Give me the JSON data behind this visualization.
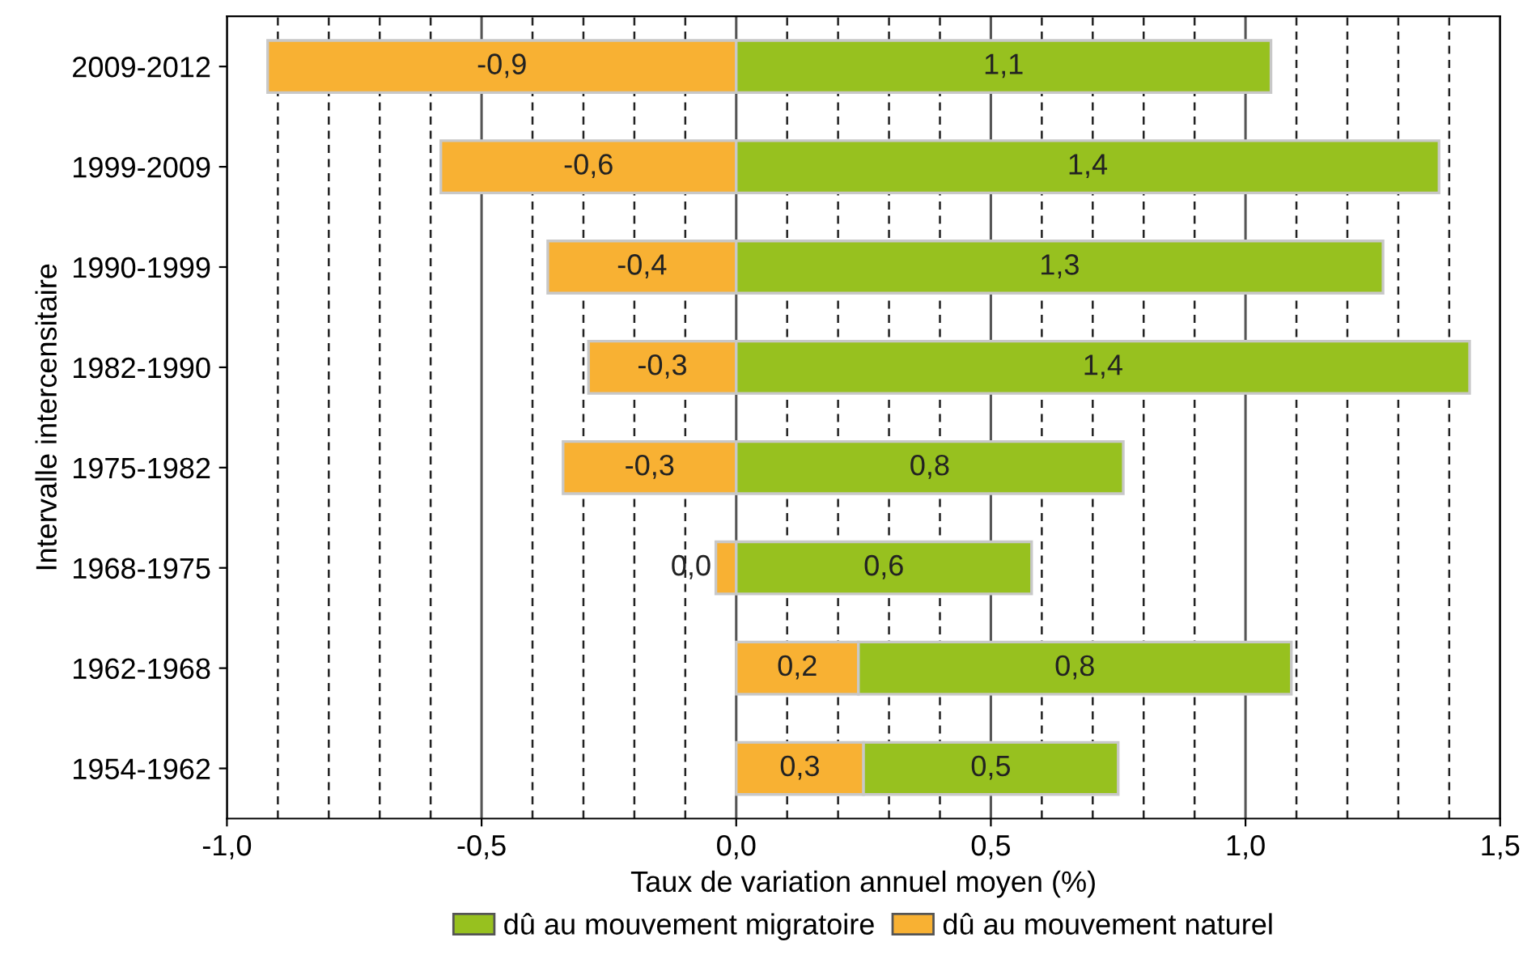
{
  "chart_data": {
    "type": "bar",
    "orientation": "horizontal",
    "stacked": true,
    "xlabel": "Taux de variation annuel moyen (%)",
    "ylabel": "Intervalle intercensitaire",
    "categories": [
      "2009-2012",
      "1999-2009",
      "1990-1999",
      "1982-1990",
      "1975-1982",
      "1968-1975",
      "1962-1968",
      "1954-1962"
    ],
    "series": [
      {
        "name": "dû au mouvement naturel",
        "color": "#f8b133",
        "values": [
          -0.92,
          -0.58,
          -0.37,
          -0.29,
          -0.34,
          -0.04,
          0.24,
          0.25
        ],
        "value_labels": [
          "-0,9",
          "-0,6",
          "-0,4",
          "-0,3",
          "-0,3",
          "0,0",
          "0,2",
          "0,3"
        ]
      },
      {
        "name": "dû au mouvement migratoire",
        "color": "#97c11f",
        "values": [
          1.05,
          1.38,
          1.27,
          1.44,
          0.76,
          0.58,
          0.85,
          0.5
        ],
        "value_labels": [
          "1,1",
          "1,4",
          "1,3",
          "1,4",
          "0,8",
          "0,6",
          "0,8",
          "0,5"
        ]
      }
    ],
    "xlim": [
      -1.0,
      1.5
    ],
    "xticks": [
      {
        "value": -1.0,
        "label": "-1,0"
      },
      {
        "value": -0.9,
        "label": null
      },
      {
        "value": -0.8,
        "label": null
      },
      {
        "value": -0.7,
        "label": null
      },
      {
        "value": -0.6,
        "label": null
      },
      {
        "value": -0.5,
        "label": "-0,5"
      },
      {
        "value": -0.4,
        "label": null
      },
      {
        "value": -0.3,
        "label": null
      },
      {
        "value": -0.2,
        "label": null
      },
      {
        "value": -0.1,
        "label": null
      },
      {
        "value": 0.0,
        "label": "0,0"
      },
      {
        "value": 0.1,
        "label": null
      },
      {
        "value": 0.2,
        "label": null
      },
      {
        "value": 0.3,
        "label": null
      },
      {
        "value": 0.4,
        "label": null
      },
      {
        "value": 0.5,
        "label": "0,5"
      },
      {
        "value": 0.6,
        "label": null
      },
      {
        "value": 0.7,
        "label": null
      },
      {
        "value": 0.8,
        "label": null
      },
      {
        "value": 0.9,
        "label": null
      },
      {
        "value": 1.0,
        "label": "1,0"
      },
      {
        "value": 1.1,
        "label": null
      },
      {
        "value": 1.2,
        "label": null
      },
      {
        "value": 1.3,
        "label": null
      },
      {
        "value": 1.4,
        "label": null
      },
      {
        "value": 1.5,
        "label": "1,5"
      }
    ],
    "grid": "x",
    "legend": "bottom"
  }
}
